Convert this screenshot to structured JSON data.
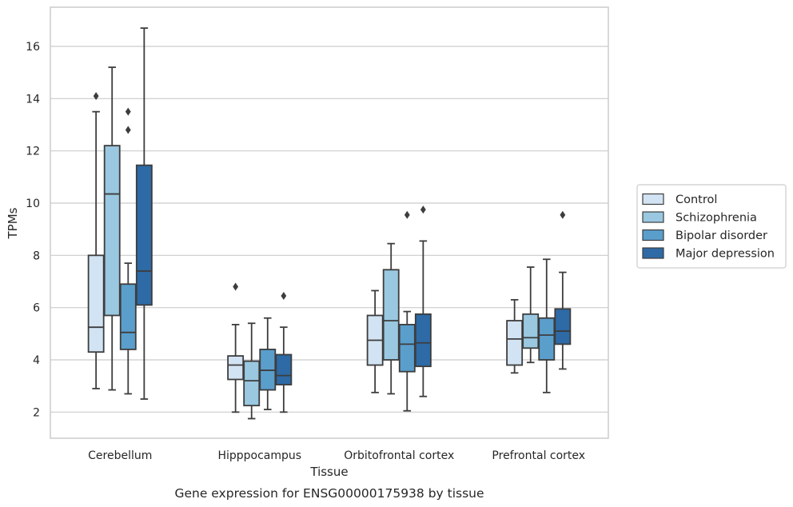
{
  "chart_data": {
    "type": "box",
    "title": "",
    "caption": "Gene expression for ENSG00000175938 by tissue",
    "xlabel": "Tissue",
    "ylabel": "TPMs",
    "ylim": [
      1,
      17.5
    ],
    "yticks": [
      2,
      4,
      6,
      8,
      10,
      12,
      14,
      16
    ],
    "grid": "horizontal",
    "legend_position": "right",
    "categories": [
      "Cerebellum",
      "Hipppocampus",
      "Orbitofrontal cortex",
      "Prefrontal cortex"
    ],
    "series": [
      {
        "name": "Control",
        "color": "#d2e3f3",
        "boxes": [
          {
            "whislo": 2.9,
            "q1": 4.3,
            "med": 5.25,
            "q3": 8.0,
            "whishi": 13.5,
            "fliers": [
              14.1
            ]
          },
          {
            "whislo": 2.0,
            "q1": 3.25,
            "med": 3.8,
            "q3": 4.15,
            "whishi": 5.35,
            "fliers": [
              6.8
            ]
          },
          {
            "whislo": 2.75,
            "q1": 3.8,
            "med": 4.75,
            "q3": 5.7,
            "whishi": 6.65,
            "fliers": []
          },
          {
            "whislo": 3.5,
            "q1": 3.8,
            "med": 4.8,
            "q3": 5.5,
            "whishi": 6.3,
            "fliers": []
          }
        ]
      },
      {
        "name": "Schizophrenia",
        "color": "#9ac8e0",
        "boxes": [
          {
            "whislo": 2.85,
            "q1": 5.7,
            "med": 10.35,
            "q3": 12.2,
            "whishi": 15.2,
            "fliers": []
          },
          {
            "whislo": 1.75,
            "q1": 2.25,
            "med": 3.2,
            "q3": 3.95,
            "whishi": 5.4,
            "fliers": []
          },
          {
            "whislo": 2.7,
            "q1": 4.0,
            "med": 5.5,
            "q3": 7.45,
            "whishi": 8.45,
            "fliers": []
          },
          {
            "whislo": 3.9,
            "q1": 4.45,
            "med": 4.85,
            "q3": 5.75,
            "whishi": 7.55,
            "fliers": []
          }
        ]
      },
      {
        "name": "Bipolar disorder",
        "color": "#5a9ecc",
        "boxes": [
          {
            "whislo": 2.7,
            "q1": 4.4,
            "med": 5.05,
            "q3": 6.9,
            "whishi": 7.7,
            "fliers": [
              12.8,
              13.5
            ]
          },
          {
            "whislo": 2.1,
            "q1": 2.85,
            "med": 3.6,
            "q3": 4.4,
            "whishi": 5.6,
            "fliers": []
          },
          {
            "whislo": 2.05,
            "q1": 3.55,
            "med": 4.6,
            "q3": 5.35,
            "whishi": 5.85,
            "fliers": [
              9.55
            ]
          },
          {
            "whislo": 2.75,
            "q1": 4.0,
            "med": 4.95,
            "q3": 5.6,
            "whishi": 7.85,
            "fliers": []
          }
        ]
      },
      {
        "name": "Major depression",
        "color": "#2d6aa6",
        "boxes": [
          {
            "whislo": 2.5,
            "q1": 6.1,
            "med": 7.4,
            "q3": 11.45,
            "whishi": 16.7,
            "fliers": []
          },
          {
            "whislo": 2.0,
            "q1": 3.05,
            "med": 3.4,
            "q3": 4.2,
            "whishi": 5.25,
            "fliers": [
              6.45
            ]
          },
          {
            "whislo": 2.6,
            "q1": 3.75,
            "med": 4.65,
            "q3": 5.75,
            "whishi": 8.55,
            "fliers": [
              9.75
            ]
          },
          {
            "whislo": 3.65,
            "q1": 4.6,
            "med": 5.1,
            "q3": 5.95,
            "whishi": 7.35,
            "fliers": [
              9.55
            ]
          }
        ]
      }
    ]
  }
}
